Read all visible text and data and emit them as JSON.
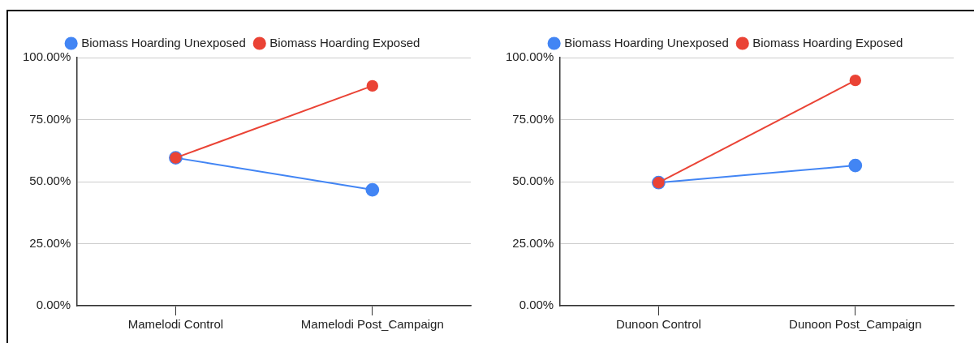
{
  "chart_data": [
    {
      "type": "line",
      "categories": [
        "Mamelodi Control",
        "Mamelodi Post_Campaign"
      ],
      "series": [
        {
          "name": "Biomass Hoarding Unexposed",
          "color": "#4285f4",
          "values": [
            59.6,
            46.7
          ]
        },
        {
          "name": "Biomass Hoarding Exposed",
          "color": "#ea4335",
          "values": [
            59.6,
            88.6
          ]
        }
      ],
      "ylim": [
        0,
        100
      ],
      "yticks": [
        {
          "value": 0,
          "label": "0.00%"
        },
        {
          "value": 25,
          "label": "25.00%"
        },
        {
          "value": 50,
          "label": "50.00%"
        },
        {
          "value": 75,
          "label": "75.00%"
        },
        {
          "value": 100,
          "label": "100.00%"
        }
      ],
      "grid": "y",
      "legend": "top",
      "marker": "circle",
      "line_style": "solid"
    },
    {
      "type": "line",
      "categories": [
        "Dunoon Control",
        "Dunoon Post_Campaign"
      ],
      "series": [
        {
          "name": "Biomass Hoarding Unexposed",
          "color": "#4285f4",
          "values": [
            49.6,
            56.5
          ]
        },
        {
          "name": "Biomass Hoarding Exposed",
          "color": "#ea4335",
          "values": [
            49.6,
            90.8
          ]
        }
      ],
      "ylim": [
        0,
        100
      ],
      "yticks": [
        {
          "value": 0,
          "label": "0.00%"
        },
        {
          "value": 25,
          "label": "25.00%"
        },
        {
          "value": 50,
          "label": "50.00%"
        },
        {
          "value": 75,
          "label": "75.00%"
        },
        {
          "value": 100,
          "label": "100.00%"
        }
      ],
      "grid": "y",
      "legend": "top",
      "marker": "circle",
      "line_style": "solid"
    }
  ]
}
